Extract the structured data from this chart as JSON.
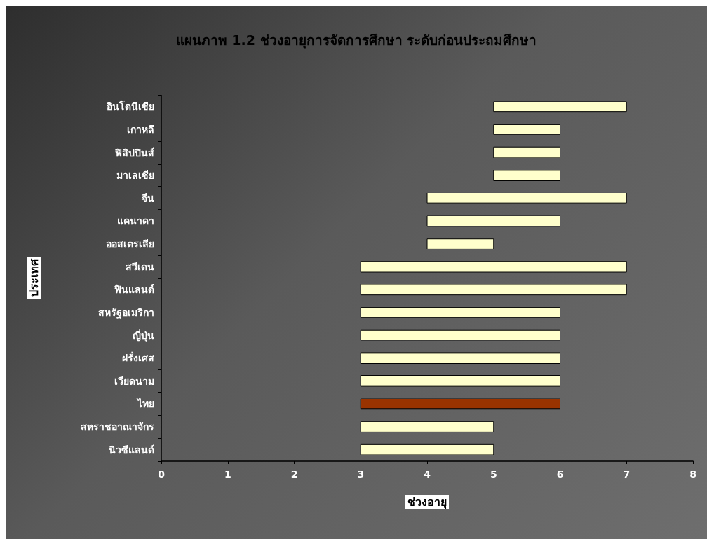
{
  "chart_data": {
    "type": "bar",
    "orientation": "horizontal",
    "title": "แผนภาพ 1.2 ช่วงอายุการจัดการศึกษา ระดับก่อนประถมศึกษา",
    "xlabel": "ช่วงอายุ",
    "ylabel": "ประเทศ",
    "categories": [
      "อินโดนีเซีย",
      "เกาหลี",
      "ฟิลิปปินส์",
      "มาเลเซีย",
      "จีน",
      "แคนาดา",
      "ออสเตรเลีย",
      "สวีเดน",
      "ฟินแลนด์",
      "สหรัฐอเมริกา",
      "ญี่ปุ่น",
      "ฝรั่งเศส",
      "เวียดนาม",
      "ไทย",
      "สหราชอาณาจักร",
      "นิวซีแลนด์"
    ],
    "base": [
      5,
      5,
      5,
      5,
      4,
      4,
      4,
      3,
      3,
      3,
      3,
      3,
      3,
      3,
      3,
      3
    ],
    "values": [
      2,
      1,
      1,
      1,
      3,
      2,
      1,
      4,
      4,
      3,
      3,
      3,
      3,
      3,
      2,
      2
    ],
    "colors": [
      "#ffffcc",
      "#ffffcc",
      "#ffffcc",
      "#ffffcc",
      "#ffffcc",
      "#ffffcc",
      "#ffffcc",
      "#ffffcc",
      "#ffffcc",
      "#ffffcc",
      "#ffffcc",
      "#ffffcc",
      "#ffffcc",
      "#993300",
      "#ffffcc",
      "#ffffcc"
    ],
    "xlim": [
      0,
      8
    ],
    "xticks": [
      0,
      1,
      2,
      3,
      4,
      5,
      6,
      7,
      8
    ],
    "grid": false
  }
}
